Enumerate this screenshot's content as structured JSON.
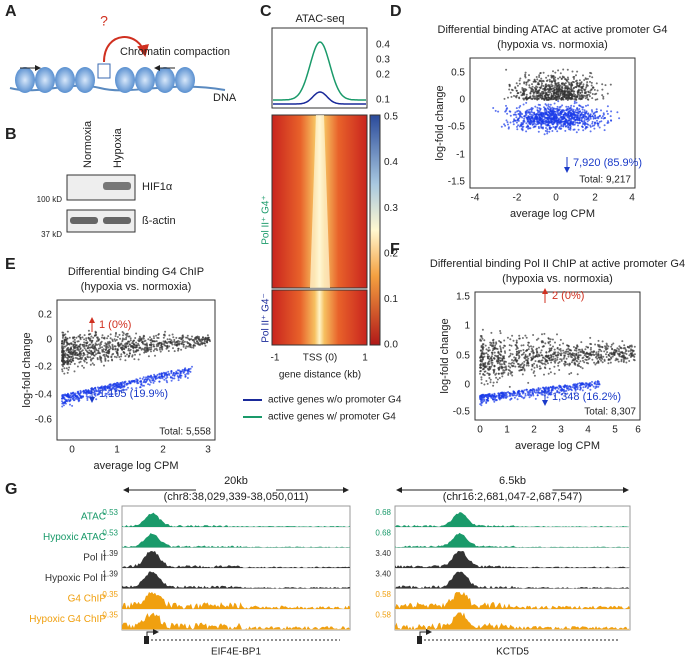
{
  "panels": {
    "A": {
      "letter": "A",
      "question": "?",
      "compaction": "Chromatin compaction",
      "dna": "DNA"
    },
    "B": {
      "letter": "B",
      "lanes": [
        "Normoxia",
        "Hypoxia"
      ],
      "markers": [
        "100 kD",
        "37 kD"
      ],
      "proteins": [
        "HIF1α",
        "ß-actin"
      ]
    },
    "C": {
      "letter": "C",
      "title": "ATAC-seq",
      "profile_ticks": [
        "0.4",
        "0.3",
        "0.2",
        "0.1"
      ],
      "colorbar_ticks": [
        "0.5",
        "0.4",
        "0.3",
        "0.2",
        "0.1",
        "0.0"
      ],
      "row_labels": [
        "Pol II⁺ G4⁺",
        "Pol II⁺ G4⁻"
      ],
      "x_ticks": [
        "-1",
        "TSS (0)",
        "1"
      ],
      "x_label": "gene distance (kb)",
      "legend": [
        "active genes w/o promoter G4",
        "active genes w/ promoter G4"
      ]
    },
    "D": {
      "letter": "D",
      "title": [
        "Differential binding ATAC at active promoter G4",
        "(hypoxia vs. normoxia)"
      ],
      "y_label": "log-fold change",
      "x_label": "average log CPM",
      "yticks": [
        "0.5",
        "0",
        "-0.5",
        "-1",
        "-1.5"
      ],
      "xticks": [
        "-4",
        "-2",
        "0",
        "2",
        "4"
      ],
      "down": "7,920 (85.9%)",
      "total": "Total: 9,217"
    },
    "E": {
      "letter": "E",
      "title": [
        "Differential binding G4 ChIP",
        "(hypoxia vs. normoxia)"
      ],
      "y_label": "log-fold change",
      "x_label": "average log CPM",
      "yticks": [
        "0.2",
        "0",
        "-0.2",
        "-0.4",
        "-0.6"
      ],
      "xticks": [
        "0",
        "1",
        "2",
        "3"
      ],
      "up": "1 (0%)",
      "down": "1,105 (19.9%)",
      "total": "Total: 5,558"
    },
    "F": {
      "letter": "F",
      "title": [
        "Differential binding Pol II ChIP at active promoter G4",
        "(hypoxia vs. normoxia)"
      ],
      "y_label": "log-fold change",
      "x_label": "average log CPM",
      "yticks": [
        "1.5",
        "1",
        "0.5",
        "0",
        "-0.5"
      ],
      "xticks": [
        "0",
        "1",
        "2",
        "3",
        "4",
        "5",
        "6"
      ],
      "up": "2 (0%)",
      "down": "1,348 (16.2%)",
      "total": "Total: 8,307"
    },
    "G": {
      "letter": "G",
      "scales": [
        "20kb",
        "6.5kb"
      ],
      "coords": [
        "(chr8:38,029,339-38,050,011)",
        "(chr16:2,681,047-2,687,547)"
      ],
      "tracks": [
        {
          "name": "ATAC",
          "color": "#1a9a6a",
          "left": "0.53",
          "right": "0.68"
        },
        {
          "name": "Hypoxic ATAC",
          "color": "#1a9a6a",
          "left": "0.53",
          "right": "0.68"
        },
        {
          "name": "Pol II",
          "color": "#333333",
          "left": "1.39",
          "right": "3.40"
        },
        {
          "name": "Hypoxic Pol II",
          "color": "#333333",
          "left": "1.39",
          "right": "3.40"
        },
        {
          "name": "G4 ChIP",
          "color": "#f0a010",
          "left": "0.35",
          "right": "0.58"
        },
        {
          "name": "Hypoxic G4 ChIP",
          "color": "#f0a010",
          "left": "0.35",
          "right": "0.58"
        }
      ],
      "genes": [
        "EIF4E-BP1",
        "KCTD5"
      ]
    }
  }
}
